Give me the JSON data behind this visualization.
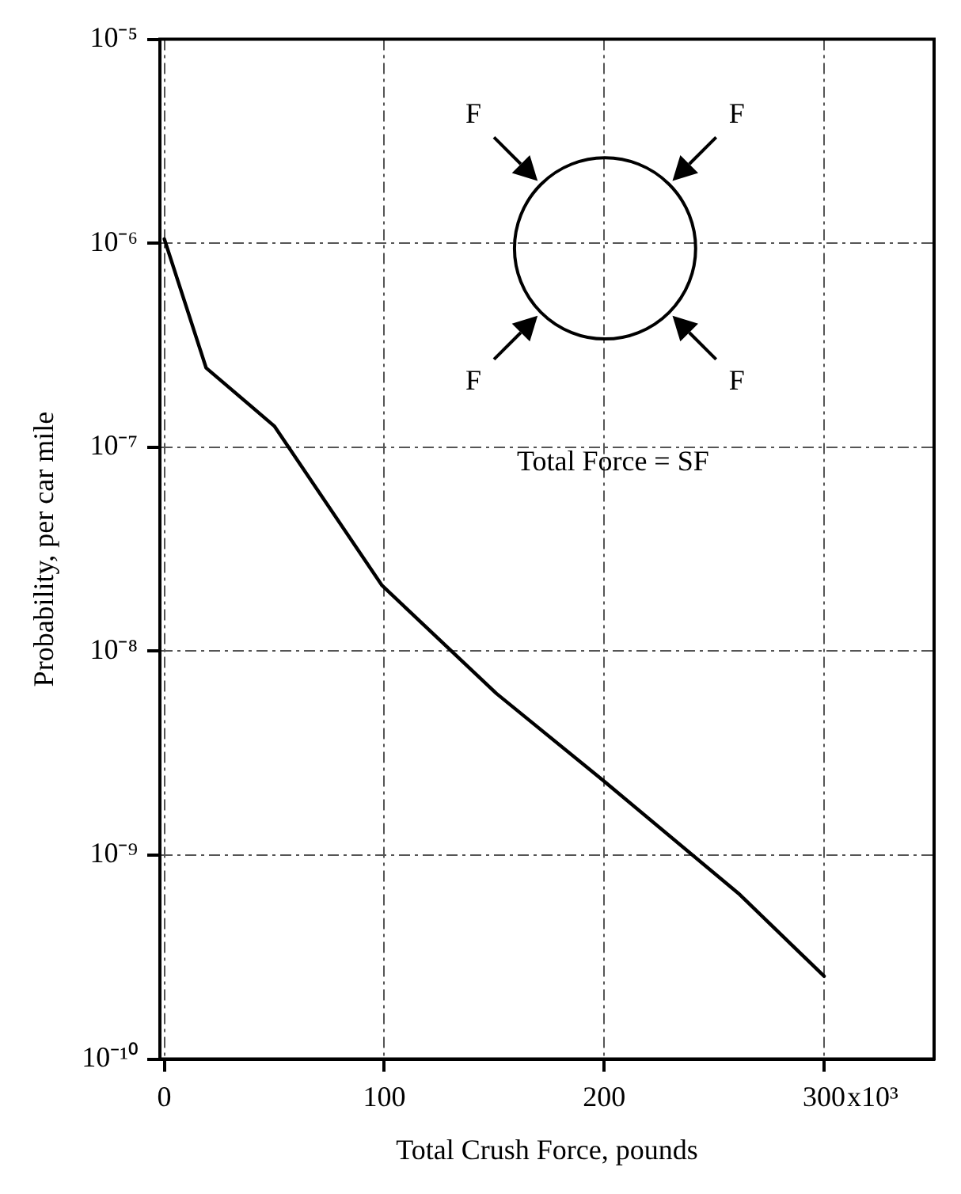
{
  "chart_data": {
    "type": "line",
    "xlabel": "Total Crush Force, pounds",
    "ylabel": "Probability, per car mile",
    "x": [
      0,
      19,
      50,
      99,
      151,
      200,
      261,
      300
    ],
    "series": [
      {
        "color": "#000000",
        "values": [
          1.05e-06,
          2.45e-07,
          1.27e-07,
          2.1e-08,
          6.2e-09,
          2.3e-09,
          6.5e-10,
          2.55e-10
        ]
      }
    ],
    "xlim": [
      -2,
      350
    ],
    "xticks": [
      0,
      100,
      200,
      300
    ],
    "ylim": [
      1e-10,
      1e-05
    ],
    "yticks": [
      {
        "value": 1e-10,
        "label": "10⁻¹⁰"
      },
      {
        "value": 1e-09,
        "label": "10⁻⁹"
      },
      {
        "value": 1e-08,
        "label": "10⁻⁸"
      },
      {
        "value": 1e-07,
        "label": "10⁻⁷"
      },
      {
        "value": 1e-06,
        "label": "10⁻⁶"
      },
      {
        "value": 1e-05,
        "label": "10⁻⁵"
      }
    ],
    "log": "y",
    "grid": true,
    "legend": false,
    "marker": "none",
    "line_style": "solid",
    "annotations": [
      "F",
      "F",
      "F",
      "F",
      "Total Force = SF",
      "x10³"
    ]
  }
}
